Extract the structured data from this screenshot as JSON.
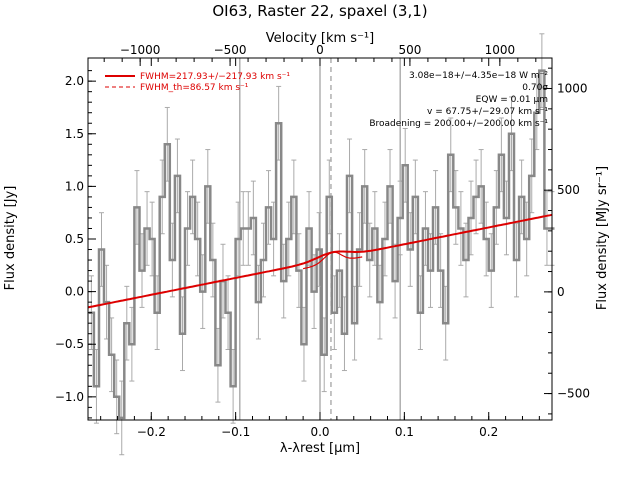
{
  "chart_data": {
    "type": "line",
    "title": "OI63, Raster 22, spaxel (3,1)",
    "xlabel": "λ-λrest [μm]",
    "ylabel": "Flux density [Jy]",
    "ylabel_right": "Flux density [MJy sr⁻¹]",
    "xlabel_top": "Velocity [km s⁻¹]",
    "xlim": [
      -0.275,
      0.275
    ],
    "ylim": [
      -1.22,
      2.22
    ],
    "right_ylim": [
      -630,
      1150
    ],
    "top_xlim": [
      -1290,
      1290
    ],
    "x_ticks": [
      "−0.2",
      "−0.1",
      "0.0",
      "0.1",
      "0.2"
    ],
    "y_ticks": [
      "−1.0",
      "−0.5",
      "0.0",
      "0.5",
      "1.0",
      "1.5",
      "2.0"
    ],
    "right_ticks": [
      "−500",
      "0",
      "500",
      "1000"
    ],
    "top_ticks": [
      "−1000",
      "−500",
      "0",
      "500",
      "1000"
    ],
    "vertical_lines": [
      -0.095,
      0.0,
      0.095
    ],
    "rest_marker": 0.013,
    "legend": [
      {
        "label": "FWHM=217.93+/−217.93 km s⁻¹",
        "style": "solid",
        "color": "#dd0000"
      },
      {
        "label": "FWHM_th=86.57 km s⁻¹",
        "style": "dashed",
        "color": "#dd0000"
      }
    ],
    "annotations": [
      "3.08e−18+/−4.35e−18 W m⁻²",
      "0.70σ",
      "EQW = 0.01 μm",
      "v = 67.75+/−29.07 km s⁻¹",
      "Broadening = 200.00+/−200.00 km s⁻¹"
    ],
    "series": [
      {
        "style": "steps-with-errorbars",
        "color": "#888888",
        "x": [
          -0.271,
          -0.265,
          -0.259,
          -0.253,
          -0.247,
          -0.241,
          -0.235,
          -0.229,
          -0.223,
          -0.217,
          -0.211,
          -0.205,
          -0.199,
          -0.193,
          -0.187,
          -0.181,
          -0.175,
          -0.169,
          -0.163,
          -0.157,
          -0.151,
          -0.145,
          -0.139,
          -0.133,
          -0.127,
          -0.121,
          -0.115,
          -0.109,
          -0.103,
          -0.097,
          -0.091,
          -0.085,
          -0.079,
          -0.073,
          -0.067,
          -0.061,
          -0.055,
          -0.049,
          -0.043,
          -0.037,
          -0.031,
          -0.025,
          -0.019,
          -0.013,
          -0.007,
          -0.001,
          0.005,
          0.011,
          0.017,
          0.023,
          0.029,
          0.035,
          0.041,
          0.047,
          0.053,
          0.059,
          0.065,
          0.071,
          0.077,
          0.083,
          0.089,
          0.095,
          0.101,
          0.107,
          0.113,
          0.119,
          0.125,
          0.131,
          0.137,
          0.143,
          0.149,
          0.155,
          0.161,
          0.167,
          0.173,
          0.179,
          0.185,
          0.191,
          0.197,
          0.203,
          0.209,
          0.215,
          0.221,
          0.227,
          0.233,
          0.239,
          0.245,
          0.251,
          0.257,
          0.263,
          0.269,
          0.275
        ],
        "y": [
          -0.2,
          -0.9,
          0.4,
          -0.1,
          -0.6,
          -1.0,
          -1.2,
          -0.3,
          -0.5,
          0.8,
          0.2,
          0.6,
          0.5,
          -0.2,
          0.9,
          1.4,
          0.3,
          1.1,
          -0.4,
          0.6,
          0.9,
          0.5,
          0.0,
          1.0,
          0.3,
          -0.7,
          0.1,
          -0.2,
          -0.9,
          0.5,
          0.6,
          0.6,
          0.7,
          -0.1,
          0.3,
          0.8,
          0.5,
          1.6,
          0.1,
          0.5,
          0.9,
          0.2,
          -0.5,
          0.6,
          0.0,
          0.4,
          -0.6,
          0.9,
          -0.2,
          0.2,
          -0.4,
          1.1,
          -0.3,
          0.4,
          1.0,
          0.3,
          0.6,
          -0.1,
          0.5,
          1.0,
          0.1,
          0.7,
          1.2,
          0.4,
          0.9,
          -0.2,
          0.6,
          0.2,
          0.8,
          0.2,
          -0.3,
          1.3,
          0.8,
          0.6,
          0.3,
          0.7,
          0.9,
          1.0,
          0.5,
          0.2,
          0.8,
          1.3,
          0.7,
          1.5,
          0.3,
          0.9,
          0.5,
          1.1,
          1.7,
          2.1,
          0.6,
          0.6
        ],
        "err": [
          0.35
        ]
      },
      {
        "name": "FWHM=217.93+/−217.93 km s⁻¹",
        "style": "fit",
        "color": "#dd0000",
        "x": [
          -0.275,
          0.275
        ],
        "y": [
          -0.15,
          0.73
        ]
      }
    ]
  }
}
